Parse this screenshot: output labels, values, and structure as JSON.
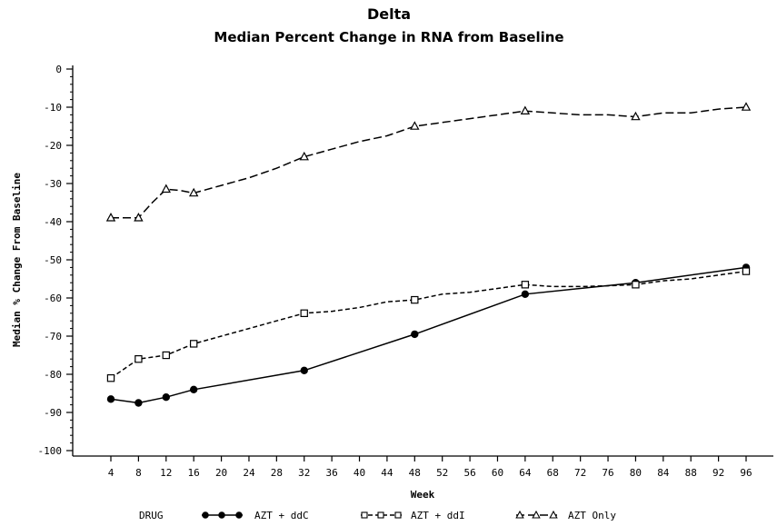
{
  "chart_data": {
    "type": "line",
    "title": "Delta",
    "subtitle": "Median Percent Change in RNA from Baseline",
    "xlabel": "Week",
    "ylabel": "Median % Change From Baseline",
    "x_ticks": [
      4,
      8,
      12,
      16,
      20,
      24,
      28,
      32,
      36,
      40,
      44,
      48,
      52,
      56,
      60,
      64,
      68,
      72,
      76,
      80,
      84,
      88,
      92,
      96
    ],
    "xlim": [
      0,
      100
    ],
    "y_ticks": [
      0,
      -10,
      -20,
      -30,
      -40,
      -50,
      -60,
      -70,
      -80,
      -90,
      -100
    ],
    "y_tick_labels": [
      "0",
      "-10",
      "-20",
      "-30",
      "-40",
      "-50",
      "-60",
      "-70",
      "-80",
      "-90",
      "-100"
    ],
    "ylim": [
      -101,
      1
    ],
    "grid": false,
    "legend": {
      "title": "DRUG",
      "placement": "bottom"
    },
    "series": [
      {
        "name": "AZT + ddC",
        "style": "solid",
        "marker": "filled-circle",
        "color": "#000000",
        "x": [
          4,
          8,
          12,
          16,
          32,
          48,
          64,
          80,
          96
        ],
        "y": [
          -86.5,
          -87.5,
          -86,
          -84,
          -79,
          -69.5,
          -59,
          -56,
          -52
        ],
        "path_x": [
          4,
          8,
          12,
          16,
          32,
          48,
          64,
          80,
          96
        ],
        "path_y": [
          -86.5,
          -87.5,
          -86,
          -84,
          -79,
          -69.5,
          -59,
          -56,
          -52
        ]
      },
      {
        "name": "AZT + ddI",
        "style": "short-dash",
        "marker": "open-square",
        "color": "#000000",
        "x": [
          4,
          8,
          12,
          16,
          32,
          48,
          64,
          80,
          96
        ],
        "y": [
          -81,
          -76,
          -75,
          -72,
          -64,
          -60.5,
          -56.5,
          -56.5,
          -53
        ],
        "path_x": [
          4,
          8,
          12,
          16,
          20,
          24,
          28,
          32,
          36,
          40,
          44,
          48,
          52,
          56,
          60,
          64,
          68,
          72,
          76,
          80,
          84,
          88,
          92,
          96
        ],
        "path_y": [
          -81,
          -76,
          -75,
          -72,
          -70,
          -68,
          -66,
          -64,
          -63.5,
          -62.5,
          -61,
          -60.5,
          -59,
          -58.5,
          -57.5,
          -56.5,
          -57,
          -57,
          -56.8,
          -56.5,
          -55.5,
          -55,
          -54,
          -53
        ]
      },
      {
        "name": "AZT Only",
        "style": "long-dash",
        "marker": "open-triangle",
        "color": "#000000",
        "x": [
          4,
          8,
          12,
          16,
          32,
          48,
          64,
          80,
          96
        ],
        "y": [
          -39,
          -39,
          -31.5,
          -32.5,
          -23,
          -15,
          -11,
          -12.5,
          -10
        ],
        "path_x": [
          4,
          8,
          10,
          12,
          14,
          16,
          20,
          24,
          28,
          32,
          36,
          40,
          44,
          48,
          52,
          56,
          60,
          64,
          68,
          72,
          76,
          80,
          84,
          88,
          92,
          96
        ],
        "path_y": [
          -39,
          -39,
          -35,
          -31.5,
          -31.8,
          -32.5,
          -30.5,
          -28.5,
          -26,
          -23,
          -21,
          -19,
          -17.5,
          -15,
          -14,
          -13,
          -12,
          -11,
          -11.5,
          -12,
          -12,
          -12.5,
          -11.5,
          -11.5,
          -10.5,
          -10
        ]
      }
    ]
  }
}
